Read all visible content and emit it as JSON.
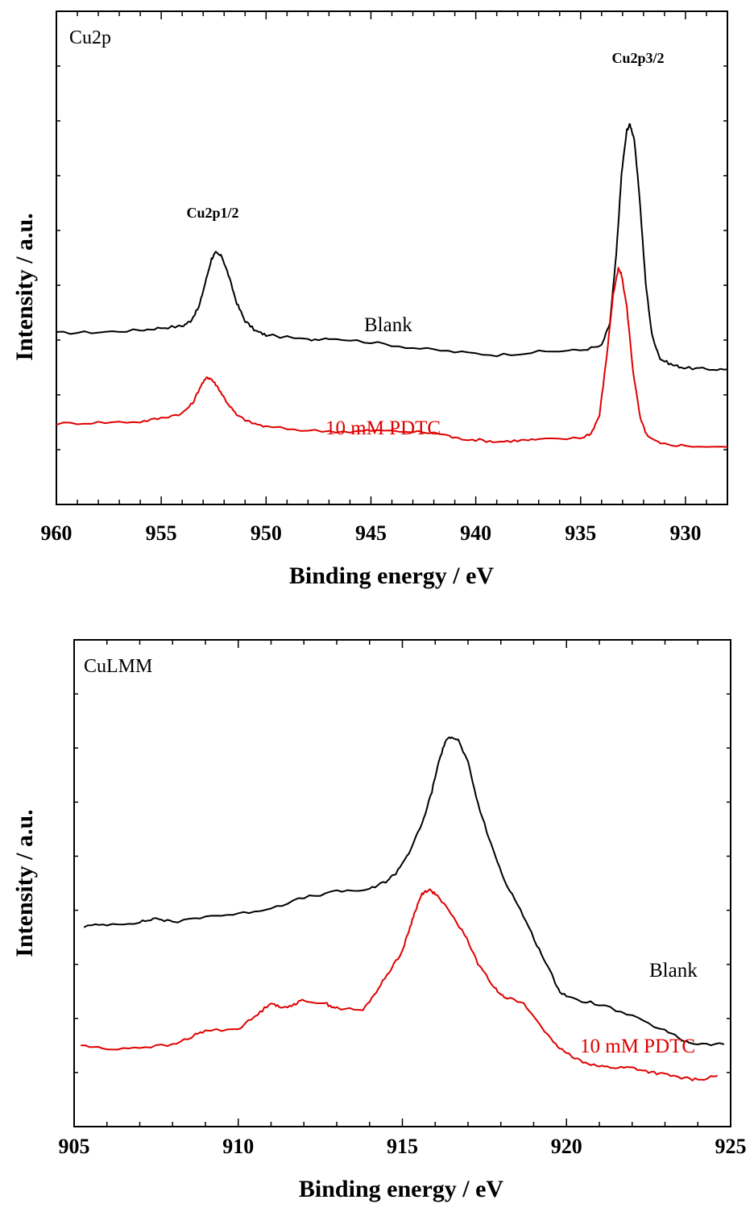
{
  "chart_data": [
    {
      "type": "line",
      "panel_label": "Cu2p",
      "xlabel": "Binding energy / eV",
      "ylabel": "Intensity / a.u.",
      "xlim": [
        960,
        928
      ],
      "x_reversed": true,
      "ylim": [
        0,
        100
      ],
      "x_ticks": [
        960,
        955,
        950,
        945,
        940,
        935,
        930
      ],
      "grid": false,
      "series": [
        {
          "name": "Blank",
          "color": "#000000",
          "points": [
            [
              960,
              35.5
            ],
            [
              958,
              35.7
            ],
            [
              956,
              36.2
            ],
            [
              955,
              36.8
            ],
            [
              954,
              37.2
            ],
            [
              953.6,
              38.5
            ],
            [
              953.2,
              42
            ],
            [
              952.9,
              48
            ],
            [
              952.6,
              54
            ],
            [
              952.4,
              55.5
            ],
            [
              952.1,
              54.5
            ],
            [
              951.8,
              50
            ],
            [
              951.4,
              43
            ],
            [
              951,
              38.5
            ],
            [
              950.5,
              36
            ],
            [
              950,
              35
            ],
            [
              948,
              33.8
            ],
            [
              947,
              34.3
            ],
            [
              945,
              33.2
            ],
            [
              943,
              31.8
            ],
            [
              941,
              30.8
            ],
            [
              939,
              30
            ],
            [
              937,
              30.8
            ],
            [
              935,
              31.2
            ],
            [
              934,
              32.3
            ],
            [
              933.6,
              38
            ],
            [
              933.3,
              55
            ],
            [
              933.05,
              75
            ],
            [
              932.8,
              86
            ],
            [
              932.65,
              87.5
            ],
            [
              932.45,
              84
            ],
            [
              932.2,
              70
            ],
            [
              931.9,
              48
            ],
            [
              931.6,
              35
            ],
            [
              931.2,
              29
            ],
            [
              930.6,
              27.5
            ],
            [
              930,
              26.8
            ],
            [
              929,
              26.5
            ],
            [
              928,
              26.4
            ]
          ]
        },
        {
          "name": "10 mM PDTC",
          "color": "#e00000",
          "points": [
            [
              960,
              12.9
            ],
            [
              958,
              13.2
            ],
            [
              956,
              13.4
            ],
            [
              955,
              14.3
            ],
            [
              954,
              15.5
            ],
            [
              953.5,
              18
            ],
            [
              953.1,
              22.5
            ],
            [
              952.8,
              24.5
            ],
            [
              952.6,
              24
            ],
            [
              952.3,
              22
            ],
            [
              951.9,
              18.5
            ],
            [
              951.4,
              15
            ],
            [
              950.8,
              13.3
            ],
            [
              950,
              12.1
            ],
            [
              948,
              11.2
            ],
            [
              946,
              10.9
            ],
            [
              945,
              11.2
            ],
            [
              943,
              10.9
            ],
            [
              941.5,
              10.3
            ],
            [
              941,
              9.3
            ],
            [
              940,
              8.9
            ],
            [
              939,
              8.4
            ],
            [
              938,
              8.7
            ],
            [
              937,
              8.9
            ],
            [
              935,
              9.3
            ],
            [
              934.5,
              10.5
            ],
            [
              934.1,
              15
            ],
            [
              933.75,
              30
            ],
            [
              933.45,
              45
            ],
            [
              933.2,
              51.5
            ],
            [
              933.05,
              50
            ],
            [
              932.8,
              42
            ],
            [
              932.5,
              26
            ],
            [
              932.15,
              14
            ],
            [
              931.8,
              9.6
            ],
            [
              931.2,
              7.9
            ],
            [
              930,
              7.4
            ],
            [
              928,
              7.1
            ]
          ]
        }
      ],
      "annotations": {
        "peak1": "Cu2p1/2",
        "peak2": "Cu2p3/2",
        "blank_label": "Blank",
        "pdtc_label": "10 mM PDTC"
      }
    },
    {
      "type": "line",
      "panel_label": "CuLMM",
      "xlabel": "Binding energy / eV",
      "ylabel": "Intensity / a.u.",
      "xlim": [
        905,
        925
      ],
      "x_reversed": false,
      "ylim": [
        0,
        100
      ],
      "x_ticks": [
        905,
        910,
        915,
        920,
        925
      ],
      "grid": false,
      "series": [
        {
          "name": "Blank",
          "color": "#000000",
          "points": [
            [
              905.3,
              43
            ],
            [
              906,
              43.5
            ],
            [
              907,
              44
            ],
            [
              907.5,
              45
            ],
            [
              908,
              44
            ],
            [
              909,
              45.5
            ],
            [
              910,
              46
            ],
            [
              911,
              47.5
            ],
            [
              912,
              50
            ],
            [
              913,
              51.5
            ],
            [
              914,
              52
            ],
            [
              914.5,
              54
            ],
            [
              914.8,
              56
            ],
            [
              915.2,
              61
            ],
            [
              915.6,
              68
            ],
            [
              915.9,
              76
            ],
            [
              916.1,
              83
            ],
            [
              916.3,
              88
            ],
            [
              916.5,
              89.5
            ],
            [
              916.7,
              88.5
            ],
            [
              917,
              83
            ],
            [
              917.3,
              73
            ],
            [
              917.7,
              63
            ],
            [
              918.1,
              54.5
            ],
            [
              918.6,
              47
            ],
            [
              919.1,
              38.5
            ],
            [
              919.5,
              32
            ],
            [
              919.8,
              27
            ],
            [
              920.2,
              25.2
            ],
            [
              921,
              24
            ],
            [
              922,
              21
            ],
            [
              923,
              17.5
            ],
            [
              923.6,
              15
            ],
            [
              924,
              14.2
            ],
            [
              924.8,
              14.2
            ]
          ]
        },
        {
          "name": "10 mM PDTC",
          "color": "#e00000",
          "points": [
            [
              905.2,
              14
            ],
            [
              906,
              13
            ],
            [
              907,
              13.5
            ],
            [
              908,
              14
            ],
            [
              908.7,
              16.5
            ],
            [
              909,
              17.5
            ],
            [
              910,
              18
            ],
            [
              910.6,
              21.5
            ],
            [
              911,
              24.5
            ],
            [
              911.3,
              23
            ],
            [
              911.7,
              24
            ],
            [
              912,
              25
            ],
            [
              912.7,
              24
            ],
            [
              913,
              23
            ],
            [
              913.8,
              22.5
            ],
            [
              914.2,
              27
            ],
            [
              914.6,
              32
            ],
            [
              915,
              37
            ],
            [
              915.2,
              42
            ],
            [
              915.4,
              47
            ],
            [
              915.6,
              51
            ],
            [
              915.8,
              52
            ],
            [
              916,
              51
            ],
            [
              916.4,
              47
            ],
            [
              916.9,
              41
            ],
            [
              917.3,
              34
            ],
            [
              917.8,
              28
            ],
            [
              918.1,
              26
            ],
            [
              918.7,
              24
            ],
            [
              919.2,
              19
            ],
            [
              919.6,
              14.5
            ],
            [
              920,
              12
            ],
            [
              920.5,
              10
            ],
            [
              921,
              8.8
            ],
            [
              921.5,
              8.5
            ],
            [
              922,
              8.5
            ],
            [
              922.5,
              7.5
            ],
            [
              923,
              6.8
            ],
            [
              923.5,
              6
            ],
            [
              924,
              5.5
            ],
            [
              924.6,
              6.5
            ]
          ]
        }
      ],
      "annotations": {
        "blank_label": "Blank",
        "pdtc_label": "10 mM PDTC"
      }
    }
  ]
}
